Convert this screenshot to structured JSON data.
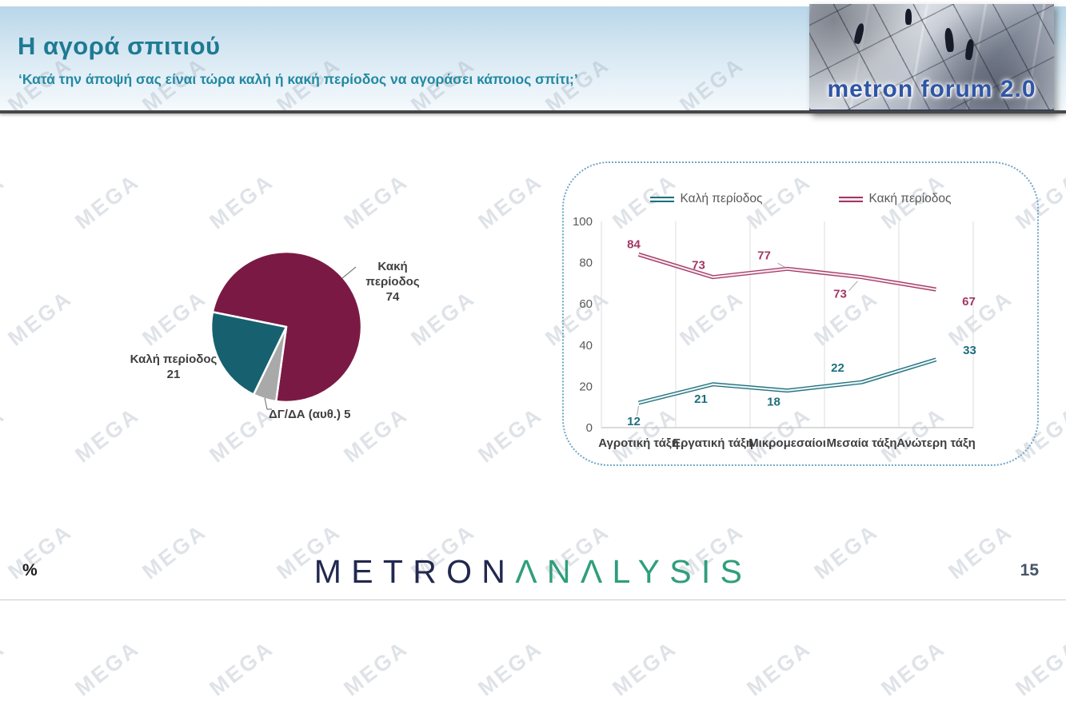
{
  "header": {
    "title": "Η αγορά σπιτιού",
    "subtitle": "‘Κατά την άποψή σας είναι τώρα καλή ή κακή περίοδος να αγοράσει κάποιος σπίτι;’",
    "logo_text": "metron forum 2.0"
  },
  "watermark": {
    "text": "MEGA"
  },
  "footer": {
    "percent_label": "%",
    "page_number": "15",
    "logo_metron": "METRON",
    "logo_analysis": "ΛNΛLYSIS"
  },
  "colors": {
    "title_teal": "#1E7A92",
    "pie_bad": "#7B1945",
    "pie_dk": "#A9A9A9",
    "pie_good": "#17606F",
    "line_bad": "#A23763",
    "line_good": "#1E6F7E",
    "panel_border": "#6FA6C6"
  },
  "chart_data": [
    {
      "type": "pie",
      "title": "",
      "start_angle_deg": 281.4,
      "slices": [
        {
          "label": "Κακή περίοδος",
          "value": 74,
          "color": "#7B1945"
        },
        {
          "label": "ΔΓ/ΔΑ (αυθ.)",
          "value": 5,
          "color": "#A9A9A9"
        },
        {
          "label": "Καλή περίοδος",
          "value": 21,
          "color": "#17606F"
        }
      ]
    },
    {
      "type": "line",
      "categories": [
        "Αγροτική τάξη",
        "Εργατική τάξη",
        "Μικρομεσαίοι",
        "Μεσαία τάξη",
        "Ανώτερη τάξη"
      ],
      "series": [
        {
          "name": "Καλή περίοδος",
          "values": [
            12,
            21,
            18,
            22,
            33
          ],
          "color": "#1E6F7E",
          "core": "#EAF4F4"
        },
        {
          "name": "Κακή περίοδος",
          "values": [
            84,
            73,
            77,
            73,
            67
          ],
          "color": "#A23763",
          "core": "#F7E6EE"
        }
      ],
      "ylim": [
        0,
        100
      ],
      "yticks": [
        0,
        20,
        40,
        60,
        80,
        100
      ],
      "legend_position": "top",
      "grid": "vertical-category-lines"
    }
  ]
}
